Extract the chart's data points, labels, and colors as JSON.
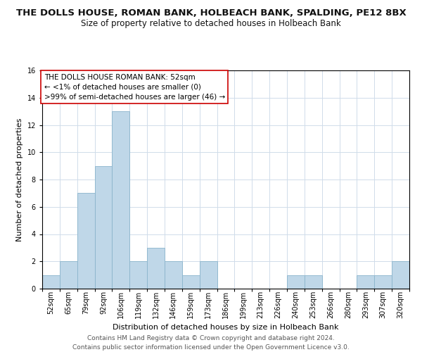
{
  "title": "THE DOLLS HOUSE, ROMAN BANK, HOLBEACH BANK, SPALDING, PE12 8BX",
  "subtitle": "Size of property relative to detached houses in Holbeach Bank",
  "xlabel": "Distribution of detached houses by size in Holbeach Bank",
  "ylabel": "Number of detached properties",
  "bar_color": "#bfd7e8",
  "bar_edge_color": "#8ab4cc",
  "bin_labels": [
    "52sqm",
    "65sqm",
    "79sqm",
    "92sqm",
    "106sqm",
    "119sqm",
    "132sqm",
    "146sqm",
    "159sqm",
    "173sqm",
    "186sqm",
    "199sqm",
    "213sqm",
    "226sqm",
    "240sqm",
    "253sqm",
    "266sqm",
    "280sqm",
    "293sqm",
    "307sqm",
    "320sqm"
  ],
  "bar_heights": [
    1,
    2,
    7,
    9,
    13,
    2,
    3,
    2,
    1,
    2,
    0,
    0,
    0,
    0,
    1,
    1,
    0,
    0,
    1,
    1,
    2
  ],
  "ylim": [
    0,
    16
  ],
  "yticks": [
    0,
    2,
    4,
    6,
    8,
    10,
    12,
    14,
    16
  ],
  "annotation_title": "THE DOLLS HOUSE ROMAN BANK: 52sqm",
  "annotation_line2": "← <1% of detached houses are smaller (0)",
  "annotation_line3": ">99% of semi-detached houses are larger (46) →",
  "annotation_box_color": "#ffffff",
  "annotation_box_edge_color": "#cc0000",
  "footer1": "Contains HM Land Registry data © Crown copyright and database right 2024.",
  "footer2": "Contains public sector information licensed under the Open Government Licence v3.0.",
  "background_color": "#ffffff",
  "grid_color": "#d0dcea",
  "title_fontsize": 9.5,
  "subtitle_fontsize": 8.5,
  "axis_label_fontsize": 8,
  "tick_fontsize": 7,
  "annotation_fontsize": 7.5,
  "footer_fontsize": 6.5
}
